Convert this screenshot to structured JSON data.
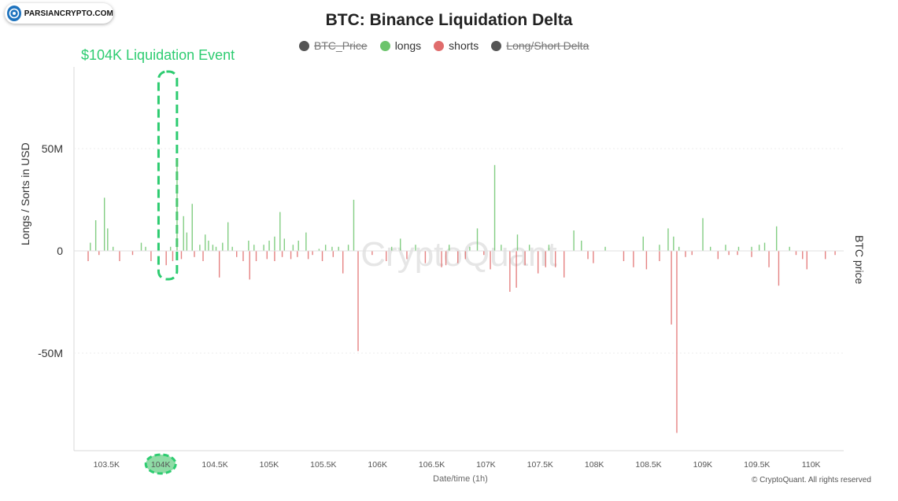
{
  "logo": {
    "text": "PARSIANCRYPTO.COM"
  },
  "copyright": "© CryptoQuant. All rights reserved",
  "watermark": "CryptoQuant",
  "annotation": {
    "label": "$104K Liquidation Event",
    "color": "#2ecc71"
  },
  "chart_data": {
    "type": "bar",
    "title": "BTC: Binance Liquidation Delta",
    "xlabel": "Date/time (1h)",
    "ylabel": "Longs / Sorts in USD",
    "y2label": "BTC price",
    "ylim": [
      -97,
      97
    ],
    "xlim": [
      103.2,
      110.3
    ],
    "yticks": [
      {
        "value": 50,
        "label": "50M"
      },
      {
        "value": 0,
        "label": "0"
      },
      {
        "value": -50,
        "label": "-50M"
      }
    ],
    "xticks": [
      {
        "value": 103.5,
        "label": "103.5K"
      },
      {
        "value": 104.0,
        "label": "104K",
        "highlight": true
      },
      {
        "value": 104.5,
        "label": "104.5K"
      },
      {
        "value": 105.0,
        "label": "105K"
      },
      {
        "value": 105.5,
        "label": "105.5K"
      },
      {
        "value": 106.0,
        "label": "106K"
      },
      {
        "value": 106.5,
        "label": "106.5K"
      },
      {
        "value": 107.0,
        "label": "107K"
      },
      {
        "value": 107.5,
        "label": "107.5K"
      },
      {
        "value": 108.0,
        "label": "108K"
      },
      {
        "value": 108.5,
        "label": "108.5K"
      },
      {
        "value": 109.0,
        "label": "109K"
      },
      {
        "value": 109.5,
        "label": "109.5K"
      },
      {
        "value": 110.0,
        "label": "110K"
      }
    ],
    "grid": true,
    "legend": [
      {
        "name": "BTC_Price",
        "color": "#555555",
        "hidden": true
      },
      {
        "name": "longs",
        "color": "#6cc46c",
        "hidden": false
      },
      {
        "name": "shorts",
        "color": "#e06c6c",
        "hidden": false
      },
      {
        "name": "Long/Short Delta",
        "color": "#555555",
        "hidden": true
      }
    ],
    "legend_position": "top-center",
    "highlight_range": [
      103.98,
      104.15
    ],
    "series": [
      {
        "name": "longs",
        "color": "#6cc46c",
        "points": [
          [
            103.35,
            4
          ],
          [
            103.4,
            15
          ],
          [
            103.48,
            26
          ],
          [
            103.51,
            11
          ],
          [
            103.56,
            2
          ],
          [
            103.82,
            4
          ],
          [
            103.86,
            2
          ],
          [
            104.09,
            2
          ],
          [
            104.15,
            45
          ],
          [
            104.21,
            17
          ],
          [
            104.24,
            9
          ],
          [
            104.29,
            23
          ],
          [
            104.36,
            3
          ],
          [
            104.41,
            8
          ],
          [
            104.44,
            5
          ],
          [
            104.48,
            3
          ],
          [
            104.51,
            2
          ],
          [
            104.57,
            4
          ],
          [
            104.62,
            14
          ],
          [
            104.66,
            2
          ],
          [
            104.81,
            5
          ],
          [
            104.86,
            3
          ],
          [
            104.95,
            3
          ],
          [
            105.0,
            5
          ],
          [
            105.05,
            7
          ],
          [
            105.1,
            19
          ],
          [
            105.14,
            6
          ],
          [
            105.22,
            3
          ],
          [
            105.27,
            5
          ],
          [
            105.34,
            9
          ],
          [
            105.46,
            1
          ],
          [
            105.52,
            3
          ],
          [
            105.58,
            2
          ],
          [
            105.64,
            2
          ],
          [
            105.73,
            3
          ],
          [
            105.78,
            25
          ],
          [
            106.13,
            2
          ],
          [
            106.21,
            6
          ],
          [
            106.35,
            3
          ],
          [
            106.66,
            3
          ],
          [
            106.85,
            2
          ],
          [
            106.92,
            11
          ],
          [
            107.08,
            42
          ],
          [
            107.14,
            3
          ],
          [
            107.29,
            8
          ],
          [
            107.4,
            3
          ],
          [
            107.58,
            3
          ],
          [
            107.81,
            10
          ],
          [
            107.88,
            5
          ],
          [
            108.1,
            2
          ],
          [
            108.45,
            7
          ],
          [
            108.6,
            3
          ],
          [
            108.68,
            11
          ],
          [
            108.73,
            7
          ],
          [
            108.78,
            2
          ],
          [
            109.0,
            16
          ],
          [
            109.07,
            2
          ],
          [
            109.21,
            3
          ],
          [
            109.33,
            2
          ],
          [
            109.45,
            2
          ],
          [
            109.52,
            3
          ],
          [
            109.57,
            4
          ],
          [
            109.68,
            12
          ],
          [
            109.8,
            2
          ]
        ]
      },
      {
        "name": "shorts",
        "color": "#e06c6c",
        "points": [
          [
            103.33,
            -5
          ],
          [
            103.43,
            -2
          ],
          [
            103.62,
            -5
          ],
          [
            103.74,
            -2
          ],
          [
            103.91,
            -5
          ],
          [
            104.05,
            -7
          ],
          [
            104.11,
            -5
          ],
          [
            104.19,
            -4
          ],
          [
            104.31,
            -3
          ],
          [
            104.39,
            -5
          ],
          [
            104.54,
            -13
          ],
          [
            104.7,
            -3
          ],
          [
            104.76,
            -5
          ],
          [
            104.82,
            -14
          ],
          [
            104.88,
            -5
          ],
          [
            104.98,
            -4
          ],
          [
            105.05,
            -5
          ],
          [
            105.12,
            -3
          ],
          [
            105.2,
            -4
          ],
          [
            105.26,
            -3
          ],
          [
            105.36,
            -4
          ],
          [
            105.4,
            -2
          ],
          [
            105.49,
            -5
          ],
          [
            105.59,
            -3
          ],
          [
            105.68,
            -11
          ],
          [
            105.82,
            -49
          ],
          [
            105.95,
            -2
          ],
          [
            106.08,
            -5
          ],
          [
            106.27,
            -4
          ],
          [
            106.44,
            -6
          ],
          [
            106.59,
            -8
          ],
          [
            106.63,
            -7
          ],
          [
            106.74,
            -6
          ],
          [
            106.81,
            -4
          ],
          [
            106.98,
            -2
          ],
          [
            107.04,
            -9
          ],
          [
            107.22,
            -20
          ],
          [
            107.28,
            -18
          ],
          [
            107.36,
            -7
          ],
          [
            107.48,
            -11
          ],
          [
            107.55,
            -8
          ],
          [
            107.64,
            -8
          ],
          [
            107.72,
            -13
          ],
          [
            107.94,
            -4
          ],
          [
            107.99,
            -6
          ],
          [
            108.27,
            -5
          ],
          [
            108.36,
            -8
          ],
          [
            108.48,
            -9
          ],
          [
            108.6,
            -5
          ],
          [
            108.71,
            -36
          ],
          [
            108.76,
            -89
          ],
          [
            108.84,
            -3
          ],
          [
            108.9,
            -2
          ],
          [
            109.14,
            -4
          ],
          [
            109.24,
            -2
          ],
          [
            109.32,
            -2
          ],
          [
            109.45,
            -3
          ],
          [
            109.61,
            -8
          ],
          [
            109.7,
            -17
          ],
          [
            109.86,
            -2
          ],
          [
            109.92,
            -4
          ],
          [
            109.96,
            -9
          ],
          [
            110.13,
            -4
          ],
          [
            110.22,
            -2
          ]
        ]
      }
    ]
  }
}
